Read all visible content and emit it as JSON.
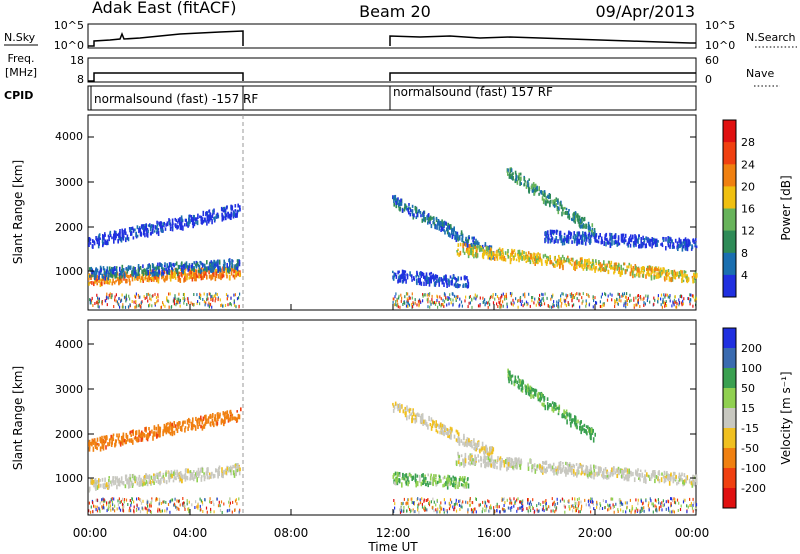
{
  "header": {
    "station": "Adak East (fitACF)",
    "beam": "Beam 20",
    "date": "09/Apr/2013"
  },
  "left_labels": {
    "nsky": "N.Sky",
    "freq": "Freq.",
    "mhz": "[MHz]",
    "cpid": "CPID"
  },
  "right_labels": {
    "nsearch": "N.Search",
    "nave": "Nave"
  },
  "noise_panel": {
    "left_ticks": [
      "10^5",
      "10^0"
    ],
    "right_ticks": [
      "10^5",
      "10^0"
    ]
  },
  "freq_panel": {
    "left_ticks": [
      "18",
      "8"
    ],
    "right_ticks": [
      "60",
      "0"
    ]
  },
  "cpid_panel": {
    "label_1": "normalsound (fast) -157 RF",
    "label_2": "normalsound (fast) 157 RF"
  },
  "x_axis": {
    "title": "Time UT",
    "ticks": [
      "00:00",
      "04:00",
      "08:00",
      "12:00",
      "16:00",
      "20:00",
      "00:00"
    ]
  },
  "power_panel": {
    "ylabel": "Slant Range [km]",
    "yticks": [
      "1000",
      "2000",
      "3000",
      "4000"
    ],
    "colorbar_label": "Power [dB]",
    "colorbar_ticks": [
      "4",
      "8",
      "12",
      "16",
      "20",
      "24",
      "28"
    ],
    "colors": [
      "#2030e0",
      "#1a6fb0",
      "#2e8b57",
      "#67b35a",
      "#f0c010",
      "#f08010",
      "#f04010",
      "#e01010"
    ]
  },
  "velocity_panel": {
    "ylabel": "Slant Range [km]",
    "yticks": [
      "1000",
      "2000",
      "3000",
      "4000"
    ],
    "colorbar_label": "Velocity [m s⁻¹]",
    "colorbar_ticks": [
      "200",
      "100",
      "50",
      "15",
      "-15",
      "-50",
      "-100",
      "-200"
    ],
    "colors": [
      "#2030e0",
      "#3a6bb0",
      "#3aa050",
      "#90d050",
      "#c8c8c0",
      "#f0c020",
      "#f08010",
      "#f04010",
      "#e01010"
    ]
  },
  "chart_data": [
    {
      "type": "heatmap",
      "title": "Power [dB]",
      "xlabel": "Time UT",
      "ylabel": "Slant Range [km]",
      "xlim": [
        "00:00",
        "24:00"
      ],
      "ylim": [
        180,
        4600
      ],
      "colorbar": {
        "label": "Power [dB]",
        "range": [
          0,
          32
        ],
        "ticks": [
          4,
          8,
          12,
          16,
          20,
          24,
          28
        ]
      },
      "data_gap": [
        "06:00",
        "12:00"
      ],
      "scatter_bands": [
        {
          "t_start": 0,
          "t_end": 6,
          "range_start_km": 900,
          "range_end_km": 1100,
          "power_db": 24
        },
        {
          "t_start": 0,
          "t_end": 6,
          "range_start_km": 1050,
          "range_end_km": 1250,
          "power_db": 8
        },
        {
          "t_start": 0,
          "t_end": 6,
          "range_start_km": 1750,
          "range_end_km": 2500,
          "power_db": 5
        },
        {
          "t_start": 12,
          "t_end": 16,
          "range_start_km": 2700,
          "range_end_km": 1500,
          "power_db": 6
        },
        {
          "t_start": 14.5,
          "t_end": 24,
          "range_start_km": 1600,
          "range_end_km": 950,
          "power_db": 20
        },
        {
          "t_start": 12,
          "t_end": 15,
          "range_start_km": 1000,
          "range_end_km": 850,
          "power_db": 5
        },
        {
          "t_start": 16.5,
          "t_end": 20,
          "range_start_km": 3400,
          "range_end_km": 2000,
          "power_db": 10
        },
        {
          "t_start": 18,
          "t_end": 24,
          "range_start_km": 1900,
          "range_end_km": 1700,
          "power_db": 5
        }
      ]
    },
    {
      "type": "heatmap",
      "title": "Velocity [m s⁻¹]",
      "xlabel": "Time UT",
      "ylabel": "Slant Range [km]",
      "xlim": [
        "00:00",
        "24:00"
      ],
      "ylim": [
        180,
        4600
      ],
      "colorbar": {
        "label": "Velocity [m s⁻¹]",
        "range": [
          -250,
          250
        ],
        "ticks": [
          200,
          100,
          50,
          15,
          -15,
          -50,
          -100,
          -200
        ]
      },
      "data_gap": [
        "06:00",
        "12:00"
      ],
      "scatter_bands": [
        {
          "t_start": 0,
          "t_end": 6,
          "range_start_km": 900,
          "range_end_km": 1250,
          "velocity": 0
        },
        {
          "t_start": 0,
          "t_end": 6,
          "range_start_km": 1800,
          "range_end_km": 2500,
          "velocity": -60
        },
        {
          "t_start": 12,
          "t_end": 16,
          "range_start_km": 2700,
          "range_end_km": 1600,
          "velocity": -10
        },
        {
          "t_start": 14.5,
          "t_end": 24,
          "range_start_km": 1500,
          "range_end_km": 1000,
          "velocity": 0
        },
        {
          "t_start": 12,
          "t_end": 15,
          "range_start_km": 1050,
          "range_end_km": 950,
          "velocity": 30
        },
        {
          "t_start": 16.5,
          "t_end": 20,
          "range_start_km": 3400,
          "range_end_km": 2000,
          "velocity": 40
        }
      ]
    }
  ]
}
